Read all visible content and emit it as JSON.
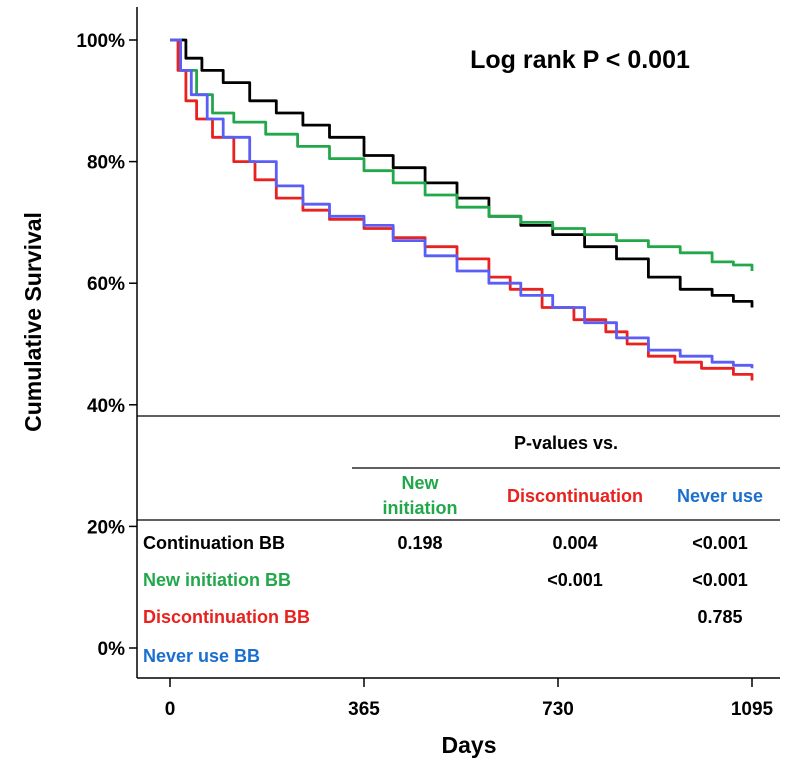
{
  "chart_data": {
    "type": "line",
    "xlabel": "Days",
    "ylabel": "Cumulative Survival",
    "xlim": [
      0,
      1095
    ],
    "ylim": [
      0,
      100
    ],
    "x_ticks": [
      "0",
      "365",
      "730",
      "1095"
    ],
    "y_ticks": [
      "0%",
      "20%",
      "40%",
      "60%",
      "80%",
      "100%"
    ],
    "annotation": "Log rank P < 0.001",
    "series": [
      {
        "name": "Continuation BB",
        "color": "#000000",
        "points": [
          [
            0,
            100
          ],
          [
            30,
            97
          ],
          [
            60,
            95
          ],
          [
            100,
            93
          ],
          [
            150,
            90
          ],
          [
            200,
            88
          ],
          [
            250,
            86
          ],
          [
            300,
            84
          ],
          [
            365,
            81
          ],
          [
            420,
            79
          ],
          [
            480,
            76.5
          ],
          [
            540,
            74
          ],
          [
            600,
            71
          ],
          [
            660,
            69.5
          ],
          [
            720,
            68
          ],
          [
            780,
            66
          ],
          [
            840,
            64
          ],
          [
            900,
            61
          ],
          [
            960,
            59
          ],
          [
            1020,
            58
          ],
          [
            1060,
            57
          ],
          [
            1095,
            56
          ]
        ]
      },
      {
        "name": "New initiation BB",
        "color": "#22a84a",
        "points": [
          [
            0,
            100
          ],
          [
            20,
            95
          ],
          [
            50,
            91
          ],
          [
            80,
            88
          ],
          [
            120,
            86.5
          ],
          [
            180,
            84.5
          ],
          [
            240,
            82.5
          ],
          [
            300,
            80.5
          ],
          [
            365,
            78.5
          ],
          [
            420,
            76.5
          ],
          [
            480,
            74.5
          ],
          [
            540,
            72.5
          ],
          [
            600,
            71
          ],
          [
            660,
            70
          ],
          [
            720,
            69
          ],
          [
            780,
            68
          ],
          [
            840,
            67
          ],
          [
            900,
            66
          ],
          [
            960,
            65
          ],
          [
            1020,
            63.5
          ],
          [
            1060,
            63
          ],
          [
            1095,
            62
          ]
        ]
      },
      {
        "name": "Discontinuation BB",
        "color": "#e8221e",
        "points": [
          [
            0,
            100
          ],
          [
            15,
            95
          ],
          [
            30,
            90
          ],
          [
            50,
            87
          ],
          [
            80,
            84
          ],
          [
            120,
            80
          ],
          [
            160,
            77
          ],
          [
            200,
            74
          ],
          [
            250,
            72
          ],
          [
            300,
            70.5
          ],
          [
            365,
            69
          ],
          [
            420,
            67.5
          ],
          [
            480,
            66
          ],
          [
            540,
            64
          ],
          [
            600,
            61
          ],
          [
            640,
            59
          ],
          [
            700,
            56
          ],
          [
            760,
            54
          ],
          [
            820,
            52
          ],
          [
            860,
            50
          ],
          [
            900,
            48
          ],
          [
            950,
            47
          ],
          [
            1000,
            46
          ],
          [
            1060,
            45
          ],
          [
            1095,
            44
          ]
        ]
      },
      {
        "name": "Never use BB",
        "color": "#5a5ef5",
        "points": [
          [
            0,
            100
          ],
          [
            20,
            95
          ],
          [
            40,
            91
          ],
          [
            70,
            87
          ],
          [
            100,
            84
          ],
          [
            150,
            80
          ],
          [
            200,
            76
          ],
          [
            250,
            73
          ],
          [
            300,
            71
          ],
          [
            365,
            69.5
          ],
          [
            420,
            67
          ],
          [
            480,
            64.5
          ],
          [
            540,
            62
          ],
          [
            600,
            60
          ],
          [
            660,
            58
          ],
          [
            720,
            56
          ],
          [
            780,
            53.5
          ],
          [
            840,
            51
          ],
          [
            900,
            49
          ],
          [
            960,
            48
          ],
          [
            1020,
            47
          ],
          [
            1060,
            46.5
          ],
          [
            1095,
            46
          ]
        ]
      }
    ]
  },
  "table": {
    "header": "P-values  vs.",
    "col_headers": [
      {
        "lines": [
          "New",
          "initiation"
        ],
        "color": "#22a84a"
      },
      {
        "lines": [
          "Discontinuation"
        ],
        "color": "#e8221e"
      },
      {
        "lines": [
          "Never use"
        ],
        "color": "#1a6fcf"
      }
    ],
    "rows": [
      {
        "label": "Continuation BB",
        "color": "#000000",
        "values": [
          "0.198",
          "0.004",
          "<0.001"
        ]
      },
      {
        "label": "New initiation BB",
        "color": "#22a84a",
        "values": [
          "",
          "<0.001",
          "<0.001"
        ]
      },
      {
        "label": "Discontinuation BB",
        "color": "#e8221e",
        "values": [
          "",
          "",
          "0.785"
        ]
      },
      {
        "label": "Never use BB",
        "color": "#1a6fcf",
        "values": [
          "",
          "",
          ""
        ]
      }
    ]
  }
}
